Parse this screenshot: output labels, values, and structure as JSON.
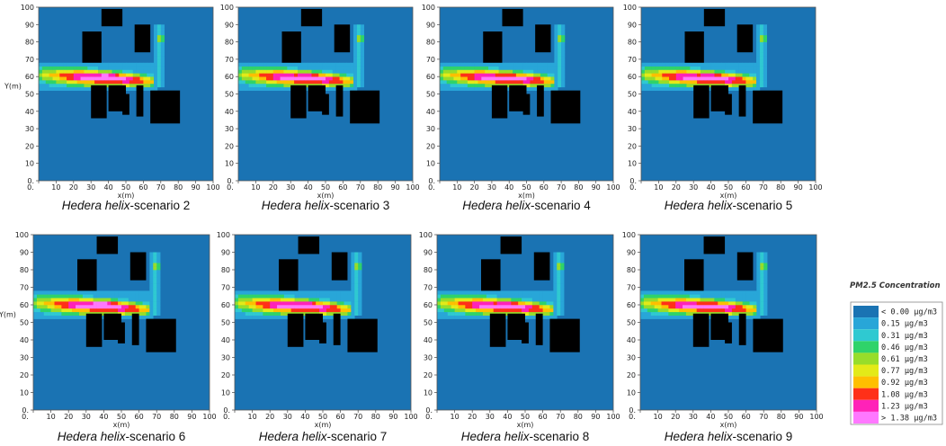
{
  "chart_data": {
    "type": "heatmap",
    "colors": {
      "background": "#1a73b3",
      "building": "#000000"
    },
    "legend": {
      "title": "PM2.5 Concentration",
      "placement": "right",
      "entries": [
        {
          "label": "< 0.00 µg/m3",
          "color": "#1a73b3"
        },
        {
          "label": "0.15  µg/m3",
          "color": "#28a6d8"
        },
        {
          "label": "0.31  µg/m3",
          "color": "#2fc9d1"
        },
        {
          "label": "0.46  µg/m3",
          "color": "#2fd36a"
        },
        {
          "label": "0.61  µg/m3",
          "color": "#97dd2a"
        },
        {
          "label": "0.77  µg/m3",
          "color": "#e3ea18"
        },
        {
          "label": "0.92  µg/m3",
          "color": "#ffbf00"
        },
        {
          "label": "1.08  µg/m3",
          "color": "#ff3018"
        },
        {
          "label": "1.23  µg/m3",
          "color": "#ff22b8"
        },
        {
          "label": "> 1.38 µg/m3",
          "color": "#ff78ff"
        }
      ]
    },
    "xlabel": "x(m)",
    "ylabel": "Y(m)",
    "xlim": [
      0,
      100
    ],
    "ylim": [
      0,
      100
    ],
    "x_ticks": [
      "0.",
      "10",
      "20",
      "30",
      "40",
      "50",
      "60",
      "70",
      "80",
      "90",
      "100"
    ],
    "y_ticks": [
      "0.",
      "10",
      "20",
      "30",
      "40",
      "50",
      "60",
      "70",
      "80",
      "90",
      "100"
    ],
    "buildings": [
      {
        "x0": 36,
        "x1": 48,
        "y0": 89,
        "y1": 99
      },
      {
        "x0": 25,
        "x1": 36,
        "y0": 68,
        "y1": 86
      },
      {
        "x0": 55,
        "x1": 64,
        "y0": 74,
        "y1": 90
      },
      {
        "x0": 30,
        "x1": 39,
        "y0": 36,
        "y1": 55
      },
      {
        "x0": 40,
        "x1": 50,
        "y0": 40,
        "y1": 55
      },
      {
        "x0": 48,
        "x1": 52,
        "y0": 38,
        "y1": 50
      },
      {
        "x0": 56,
        "x1": 60,
        "y0": 37,
        "y1": 55
      },
      {
        "x0": 64,
        "x1": 81,
        "y0": 33,
        "y1": 52
      }
    ],
    "panels": [
      {
        "title_italic": "Hedera helix",
        "title_rest": "-scenario 2",
        "ylabel": "Y(m)",
        "hotspot": 0.95
      },
      {
        "title_italic": "Hedera helix",
        "title_rest": "-scenario 3",
        "ylabel": "",
        "hotspot": 0.88
      },
      {
        "title_italic": "Hedera helix",
        "title_rest": "-scenario 4",
        "ylabel": "",
        "hotspot": 0.8
      },
      {
        "title_italic": "Hedera helix",
        "title_rest": "-scenario 5",
        "ylabel": "",
        "hotspot": 0.9
      },
      {
        "title_italic": "Hedera helix",
        "title_rest": "-scenario 6",
        "ylabel": "Y(m)",
        "hotspot": 1.0
      },
      {
        "title_italic": "Hedera helix",
        "title_rest": "-scenario 7",
        "ylabel": "",
        "hotspot": 0.92
      },
      {
        "title_italic": "Hedera helix",
        "title_rest": "-scenario 8",
        "ylabel": "",
        "hotspot": 0.9
      },
      {
        "title_italic": "Hedera helix",
        "title_rest": "-scenario 9",
        "ylabel": "",
        "hotspot": 0.82
      }
    ]
  }
}
